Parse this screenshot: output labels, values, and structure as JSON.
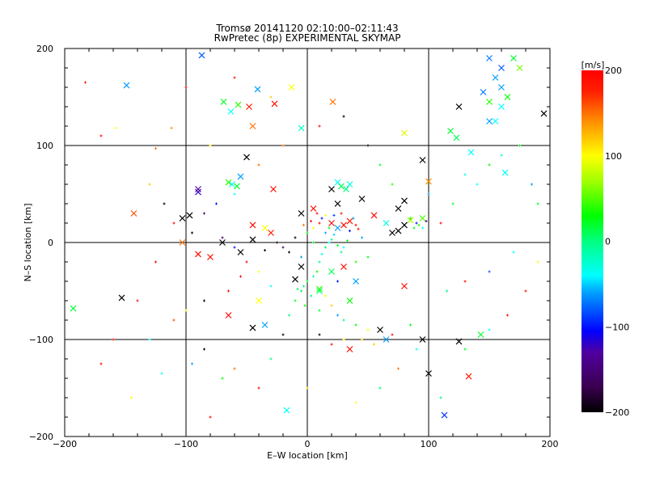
{
  "chart_data": {
    "type": "scatter",
    "title": "Tromsø 20141120 02:10:00–02:11:43",
    "subtitle": "RwPretec (8p) EXPERIMENTAL SKYMAP",
    "xlabel": "E–W location [km]",
    "ylabel": "N–S location [km]",
    "xlim": [
      -200,
      200
    ],
    "ylim": [
      -200,
      200
    ],
    "xticks": [
      "−200",
      "−100",
      "0",
      "100",
      "200"
    ],
    "yticks": [
      "−200",
      "−100",
      "0",
      "100",
      "200"
    ],
    "xtick_values": [
      -200,
      -100,
      0,
      100,
      200
    ],
    "ytick_values": [
      -200,
      -100,
      0,
      100,
      200
    ],
    "grid": true,
    "colorbar": {
      "label": "[m/s]",
      "range": [
        -200,
        200
      ],
      "ticks": [
        "200",
        "100",
        "0",
        "−100",
        "−200"
      ],
      "tick_values": [
        200,
        100,
        0,
        -100,
        -200
      ]
    },
    "colorscale": [
      [
        -200,
        "#000000"
      ],
      [
        -170,
        "#3a0050"
      ],
      [
        -130,
        "#5000a0"
      ],
      [
        -105,
        "#0000ff"
      ],
      [
        -60,
        "#00a0ff"
      ],
      [
        -40,
        "#00ffff"
      ],
      [
        0,
        "#00ff80"
      ],
      [
        30,
        "#00ff00"
      ],
      [
        70,
        "#a0ff00"
      ],
      [
        100,
        "#ffff00"
      ],
      [
        140,
        "#ff9000"
      ],
      [
        175,
        "#ff2000"
      ],
      [
        200,
        "#ff0000"
      ]
    ],
    "points_format": [
      "x_km",
      "y_km",
      "velocity_m_s",
      "marker"
    ],
    "points": [
      [
        -87,
        193,
        -80,
        "x"
      ],
      [
        -149,
        162,
        -60,
        "x"
      ],
      [
        -41,
        158,
        -60,
        "x"
      ],
      [
        -13,
        160,
        100,
        "x"
      ],
      [
        -69,
        145,
        20,
        "x"
      ],
      [
        -57,
        142,
        40,
        "x"
      ],
      [
        -48,
        140,
        180,
        "x"
      ],
      [
        -27,
        143,
        190,
        "x"
      ],
      [
        21,
        145,
        150,
        "x"
      ],
      [
        -45,
        120,
        150,
        "x"
      ],
      [
        -5,
        118,
        -20,
        "x"
      ],
      [
        80,
        113,
        90,
        "x"
      ],
      [
        95,
        85,
        -200,
        "x"
      ],
      [
        -50,
        88,
        -200,
        "x"
      ],
      [
        -63,
        135,
        -40,
        "x"
      ],
      [
        150,
        190,
        -70,
        "x"
      ],
      [
        160,
        180,
        -80,
        "x"
      ],
      [
        175,
        180,
        60,
        "x"
      ],
      [
        170,
        190,
        20,
        "x"
      ],
      [
        155,
        170,
        -60,
        "x"
      ],
      [
        160,
        160,
        -60,
        "x"
      ],
      [
        145,
        155,
        -70,
        "x"
      ],
      [
        165,
        150,
        30,
        "x"
      ],
      [
        150,
        145,
        40,
        "x"
      ],
      [
        160,
        140,
        -40,
        "x"
      ],
      [
        150,
        125,
        -60,
        "x"
      ],
      [
        155,
        125,
        -40,
        "x"
      ],
      [
        125,
        140,
        -200,
        "x"
      ],
      [
        118,
        115,
        20,
        "x"
      ],
      [
        123,
        108,
        10,
        "x"
      ],
      [
        135,
        93,
        -40,
        "x"
      ],
      [
        195,
        133,
        -200,
        "x"
      ],
      [
        163,
        72,
        -40,
        "x"
      ],
      [
        100,
        63,
        140,
        "x"
      ],
      [
        -90,
        52,
        -120,
        "x"
      ],
      [
        -90,
        55,
        -130,
        "x"
      ],
      [
        -103,
        25,
        -200,
        "x"
      ],
      [
        -97,
        28,
        -200,
        "x"
      ],
      [
        -143,
        30,
        160,
        "x"
      ],
      [
        -103,
        0,
        150,
        "x"
      ],
      [
        -80,
        -15,
        190,
        "x"
      ],
      [
        -70,
        0,
        -200,
        "x"
      ],
      [
        -55,
        -10,
        -200,
        "x"
      ],
      [
        -45,
        3,
        -200,
        "x"
      ],
      [
        -35,
        15,
        100,
        "x"
      ],
      [
        -45,
        18,
        190,
        "x"
      ],
      [
        -62,
        60,
        -40,
        "x"
      ],
      [
        -55,
        68,
        -60,
        "x"
      ],
      [
        -65,
        62,
        40,
        "x"
      ],
      [
        -58,
        58,
        20,
        "x"
      ],
      [
        -28,
        55,
        190,
        "x"
      ],
      [
        20,
        55,
        -200,
        "x"
      ],
      [
        25,
        62,
        -40,
        "x"
      ],
      [
        28,
        58,
        10,
        "x"
      ],
      [
        32,
        55,
        0,
        "x"
      ],
      [
        35,
        60,
        -30,
        "x"
      ],
      [
        45,
        45,
        -200,
        "x"
      ],
      [
        25,
        40,
        -200,
        "x"
      ],
      [
        5,
        35,
        190,
        "x"
      ],
      [
        -5,
        30,
        -200,
        "x"
      ],
      [
        20,
        20,
        190,
        "x"
      ],
      [
        30,
        18,
        190,
        "x"
      ],
      [
        35,
        22,
        180,
        "x"
      ],
      [
        25,
        15,
        -60,
        "x"
      ],
      [
        65,
        20,
        -30,
        "x"
      ],
      [
        75,
        35,
        -200,
        "x"
      ],
      [
        80,
        43,
        -200,
        "x"
      ],
      [
        85,
        23,
        70,
        "x"
      ],
      [
        95,
        25,
        50,
        "x"
      ],
      [
        75,
        12,
        -200,
        "x"
      ],
      [
        80,
        18,
        -200,
        "x"
      ],
      [
        55,
        28,
        190,
        "x"
      ],
      [
        70,
        10,
        -200,
        "x"
      ],
      [
        -30,
        10,
        180,
        "x"
      ],
      [
        -5,
        -25,
        -200,
        "x"
      ],
      [
        30,
        -25,
        190,
        "x"
      ],
      [
        40,
        -40,
        -60,
        "x"
      ],
      [
        -40,
        -60,
        100,
        "x"
      ],
      [
        80,
        -45,
        190,
        "x"
      ],
      [
        -153,
        -57,
        -200,
        "x"
      ],
      [
        -193,
        -68,
        20,
        "x"
      ],
      [
        -90,
        -12,
        190,
        "x"
      ],
      [
        -65,
        -75,
        190,
        "x"
      ],
      [
        -45,
        -88,
        -200,
        "x"
      ],
      [
        -35,
        -85,
        -60,
        "x"
      ],
      [
        -10,
        -38,
        -200,
        "x"
      ],
      [
        10,
        -50,
        0,
        "x"
      ],
      [
        20,
        -30,
        10,
        "x"
      ],
      [
        35,
        -110,
        190,
        "x"
      ],
      [
        60,
        -90,
        -200,
        "x"
      ],
      [
        65,
        -100,
        -60,
        "x"
      ],
      [
        95,
        -100,
        -200,
        "x"
      ],
      [
        100,
        -135,
        -200,
        "x"
      ],
      [
        113,
        -178,
        -90,
        "x"
      ],
      [
        125,
        -102,
        -200,
        "x"
      ],
      [
        133,
        -138,
        180,
        "x"
      ],
      [
        143,
        -95,
        20,
        "x"
      ],
      [
        -17,
        -173,
        -40,
        "x"
      ],
      [
        35,
        -60,
        30,
        "x"
      ],
      [
        10,
        -48,
        40,
        "x"
      ],
      [
        -183,
        165,
        180,
        "+"
      ],
      [
        -170,
        110,
        190,
        "+"
      ],
      [
        -158,
        118,
        100,
        "+"
      ],
      [
        -125,
        97,
        150,
        "+"
      ],
      [
        -112,
        118,
        140,
        "+"
      ],
      [
        -100,
        160,
        190,
        "+"
      ],
      [
        -60,
        170,
        190,
        "+"
      ],
      [
        -30,
        150,
        120,
        "+"
      ],
      [
        -80,
        100,
        100,
        "+"
      ],
      [
        -130,
        60,
        120,
        "+"
      ],
      [
        -118,
        40,
        -200,
        "+"
      ],
      [
        -110,
        20,
        190,
        "+"
      ],
      [
        -125,
        -20,
        190,
        "+"
      ],
      [
        -140,
        -60,
        190,
        "+"
      ],
      [
        -160,
        -100,
        180,
        "+"
      ],
      [
        -170,
        -125,
        190,
        "+"
      ],
      [
        -145,
        -160,
        100,
        "+"
      ],
      [
        -120,
        -135,
        -40,
        "+"
      ],
      [
        -100,
        -70,
        100,
        "+"
      ],
      [
        -85,
        -110,
        -200,
        "+"
      ],
      [
        -80,
        -180,
        190,
        "+"
      ],
      [
        -60,
        -130,
        150,
        "+"
      ],
      [
        -30,
        -120,
        0,
        "+"
      ],
      [
        -20,
        -95,
        -200,
        "+"
      ],
      [
        -15,
        -75,
        0,
        "+"
      ],
      [
        -10,
        -60,
        20,
        "+"
      ],
      [
        -5,
        -50,
        10,
        "+"
      ],
      [
        -3,
        -45,
        0,
        "+"
      ],
      [
        0,
        -40,
        20,
        "+"
      ],
      [
        5,
        -35,
        -10,
        "+"
      ],
      [
        8,
        -30,
        30,
        "+"
      ],
      [
        10,
        -20,
        0,
        "+"
      ],
      [
        12,
        -12,
        -30,
        "+"
      ],
      [
        15,
        -5,
        10,
        "+"
      ],
      [
        18,
        0,
        -40,
        "+"
      ],
      [
        20,
        3,
        0,
        "+"
      ],
      [
        22,
        8,
        -50,
        "+"
      ],
      [
        25,
        -3,
        20,
        "+"
      ],
      [
        28,
        -10,
        0,
        "+"
      ],
      [
        30,
        -5,
        -40,
        "+"
      ],
      [
        33,
        2,
        30,
        "+"
      ],
      [
        15,
        10,
        -60,
        "+"
      ],
      [
        18,
        15,
        20,
        "+"
      ],
      [
        10,
        20,
        190,
        "+"
      ],
      [
        12,
        25,
        -100,
        "+"
      ],
      [
        15,
        28,
        100,
        "+"
      ],
      [
        8,
        30,
        190,
        "+"
      ],
      [
        3,
        22,
        190,
        "+"
      ],
      [
        5,
        15,
        100,
        "+"
      ],
      [
        0,
        10,
        30,
        "+"
      ],
      [
        -3,
        18,
        150,
        "+"
      ],
      [
        22,
        28,
        -90,
        "+"
      ],
      [
        28,
        30,
        190,
        "+"
      ],
      [
        38,
        25,
        -60,
        "+"
      ],
      [
        40,
        18,
        190,
        "+"
      ],
      [
        42,
        14,
        190,
        "+"
      ],
      [
        35,
        12,
        -100,
        "+"
      ],
      [
        45,
        5,
        -60,
        "+"
      ],
      [
        50,
        -15,
        30,
        "+"
      ],
      [
        40,
        -20,
        40,
        "+"
      ],
      [
        25,
        -40,
        -100,
        "+"
      ],
      [
        15,
        -55,
        100,
        "+"
      ],
      [
        20,
        -65,
        120,
        "+"
      ],
      [
        10,
        -70,
        20,
        "+"
      ],
      [
        25,
        -75,
        -60,
        "+"
      ],
      [
        30,
        -80,
        0,
        "+"
      ],
      [
        40,
        -85,
        30,
        "+"
      ],
      [
        50,
        -90,
        100,
        "+"
      ],
      [
        45,
        -100,
        120,
        "+"
      ],
      [
        30,
        -100,
        100,
        "+"
      ],
      [
        20,
        -105,
        190,
        "+"
      ],
      [
        10,
        -95,
        -200,
        "+"
      ],
      [
        55,
        -105,
        120,
        "+"
      ],
      [
        70,
        -95,
        190,
        "+"
      ],
      [
        85,
        -85,
        30,
        "+"
      ],
      [
        90,
        -110,
        -40,
        "+"
      ],
      [
        75,
        -130,
        150,
        "+"
      ],
      [
        60,
        -150,
        0,
        "+"
      ],
      [
        40,
        -165,
        100,
        "+"
      ],
      [
        0,
        -150,
        120,
        "+"
      ],
      [
        -40,
        -150,
        190,
        "+"
      ],
      [
        110,
        -160,
        0,
        "+"
      ],
      [
        130,
        -110,
        20,
        "+"
      ],
      [
        150,
        -90,
        -40,
        "+"
      ],
      [
        165,
        -75,
        190,
        "+"
      ],
      [
        180,
        -50,
        190,
        "+"
      ],
      [
        190,
        -20,
        100,
        "+"
      ],
      [
        170,
        -10,
        -40,
        "+"
      ],
      [
        150,
        -30,
        -80,
        "+"
      ],
      [
        130,
        -40,
        190,
        "+"
      ],
      [
        115,
        -50,
        0,
        "+"
      ],
      [
        110,
        20,
        190,
        "+"
      ],
      [
        120,
        40,
        20,
        "+"
      ],
      [
        140,
        60,
        -40,
        "+"
      ],
      [
        160,
        90,
        -30,
        "+"
      ],
      [
        175,
        100,
        30,
        "+"
      ],
      [
        185,
        60,
        -60,
        "+"
      ],
      [
        190,
        40,
        20,
        "+"
      ],
      [
        150,
        80,
        30,
        "+"
      ],
      [
        130,
        70,
        -30,
        "+"
      ],
      [
        100,
        50,
        -60,
        "+"
      ],
      [
        85,
        25,
        30,
        "+"
      ],
      [
        90,
        20,
        -100,
        "+"
      ],
      [
        92,
        18,
        40,
        "+"
      ],
      [
        98,
        22,
        -150,
        "+"
      ],
      [
        88,
        15,
        20,
        "+"
      ],
      [
        95,
        15,
        -40,
        "+"
      ],
      [
        70,
        60,
        40,
        "+"
      ],
      [
        60,
        80,
        20,
        "+"
      ],
      [
        50,
        100,
        -200,
        "+"
      ],
      [
        30,
        130,
        -200,
        "+"
      ],
      [
        10,
        120,
        190,
        "+"
      ],
      [
        -20,
        100,
        150,
        "+"
      ],
      [
        -40,
        80,
        150,
        "+"
      ],
      [
        -60,
        50,
        -40,
        "+"
      ],
      [
        -75,
        40,
        -100,
        "+"
      ],
      [
        -85,
        30,
        -150,
        "+"
      ],
      [
        -95,
        10,
        -200,
        "+"
      ],
      [
        -70,
        5,
        -150,
        "+"
      ],
      [
        -60,
        -5,
        -100,
        "+"
      ],
      [
        -50,
        -20,
        190,
        "+"
      ],
      [
        -40,
        -30,
        100,
        "+"
      ],
      [
        -30,
        -45,
        -40,
        "+"
      ],
      [
        -55,
        -35,
        190,
        "+"
      ],
      [
        -65,
        -50,
        190,
        "+"
      ],
      [
        -85,
        -60,
        -200,
        "+"
      ],
      [
        -110,
        -80,
        160,
        "+"
      ],
      [
        -130,
        -100,
        -40,
        "+"
      ],
      [
        -95,
        -125,
        -60,
        "+"
      ],
      [
        -70,
        -140,
        30,
        "+"
      ],
      [
        -15,
        -10,
        -200,
        "+"
      ],
      [
        -25,
        0,
        -200,
        "+"
      ],
      [
        -35,
        -8,
        -200,
        "+"
      ],
      [
        -20,
        -5,
        -150,
        "+"
      ],
      [
        5,
        0,
        20,
        "+"
      ],
      [
        -5,
        -15,
        -60,
        "+"
      ],
      [
        -10,
        5,
        -200,
        "+"
      ],
      [
        -2,
        -65,
        30,
        "+"
      ],
      [
        -8,
        -48,
        10,
        "+"
      ],
      [
        3,
        -55,
        0,
        "+"
      ]
    ]
  }
}
